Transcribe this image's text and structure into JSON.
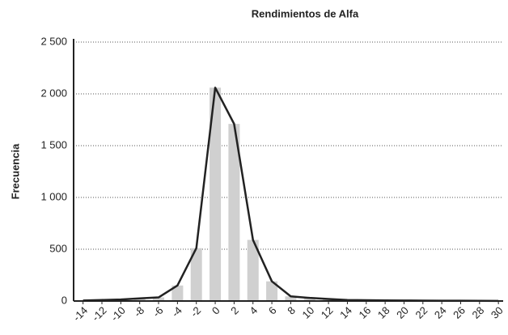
{
  "chart_data": {
    "type": "histogram",
    "title": "Rendimientos de Alfa",
    "ylabel": "Frecuencia",
    "bins": [
      -15,
      -13,
      -11,
      -9,
      -7,
      -5,
      -3,
      -1,
      1,
      3,
      5,
      7,
      9,
      11,
      13,
      15,
      17,
      19,
      21,
      23,
      25,
      27,
      29,
      31
    ],
    "values": [
      5,
      10,
      15,
      25,
      35,
      150,
      510,
      2060,
      1710,
      590,
      190,
      45,
      30,
      20,
      10,
      8,
      6,
      5,
      4,
      3,
      3,
      2,
      1
    ],
    "color": "#d0d0d0",
    "line_color": "#222222",
    "xlim": [
      -15,
      30.5
    ],
    "xticks": [
      -14,
      -12,
      -10,
      -8,
      -6,
      -4,
      -2,
      0,
      2,
      4,
      6,
      8,
      10,
      12,
      14,
      16,
      18,
      20,
      22,
      24,
      26,
      28,
      30
    ],
    "ylim": [
      0,
      2500
    ],
    "yticks": [
      0,
      500,
      {
        "value": 1000,
        "label": "1 000"
      },
      {
        "value": 1500,
        "label": "1 500"
      },
      {
        "value": 2000,
        "label": "2 000"
      },
      {
        "value": 2500,
        "label": "2 500"
      }
    ],
    "grid": true
  }
}
